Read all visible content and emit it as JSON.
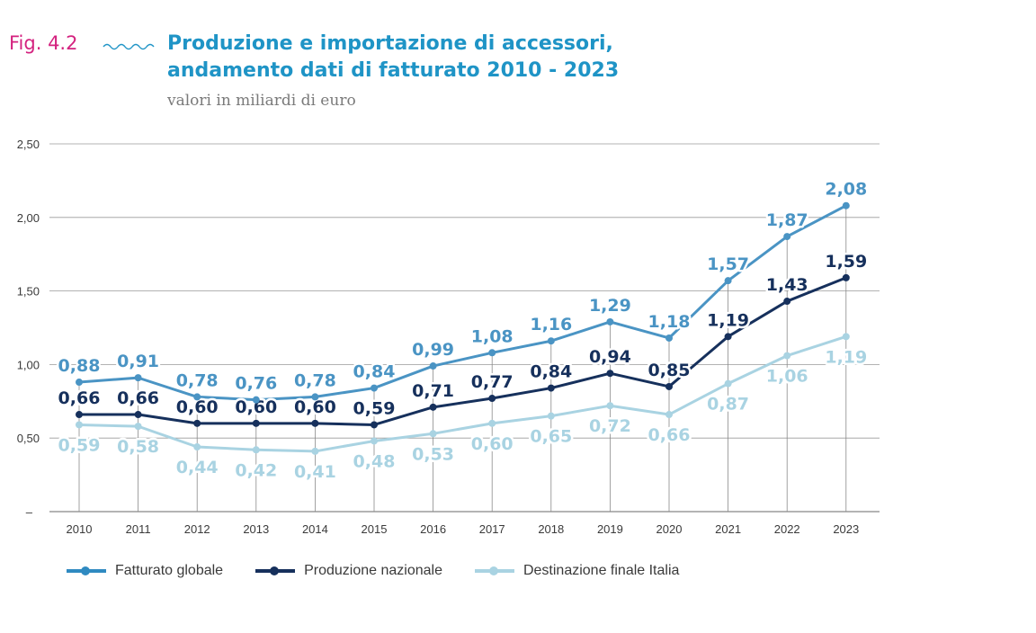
{
  "header": {
    "fig_label": "Fig. 4.2",
    "title_line1": "Produzione e importazione di accessori,",
    "title_line2": "andamento dati di fatturato 2010 - 2023",
    "subtitle": "valori in miliardi di euro"
  },
  "colors": {
    "fig_label": "#d4227f",
    "title": "#1f94c6",
    "grid": "#9a9a9a",
    "series": [
      "#4a94c4",
      "#16305c",
      "#a9d3e2"
    ]
  },
  "chart_data": {
    "type": "line",
    "x": [
      "2010",
      "2011",
      "2012",
      "2013",
      "2014",
      "2015",
      "2016",
      "2017",
      "2018",
      "2019",
      "2020",
      "2021",
      "2022",
      "2023"
    ],
    "ylim": [
      0,
      2.5
    ],
    "yticks": [
      0,
      0.5,
      1.0,
      1.5,
      2.0,
      2.5
    ],
    "ytick_labels": [
      "–",
      "0,50",
      "1,00",
      "1,50",
      "2,00",
      "2,50"
    ],
    "grid": true,
    "legend_position": "bottom",
    "series": [
      {
        "name": "Fatturato globale",
        "values": [
          0.88,
          0.91,
          0.78,
          0.76,
          0.78,
          0.84,
          0.99,
          1.08,
          1.16,
          1.29,
          1.18,
          1.57,
          1.87,
          2.08
        ],
        "labels": [
          "0,88",
          "0,91",
          "0,78",
          "0,76",
          "0,78",
          "0,84",
          "0,99",
          "1,08",
          "1,16",
          "1,29",
          "1,18",
          "1,57",
          "1,87",
          "2,08"
        ],
        "label_position": "above"
      },
      {
        "name": "Produzione nazionale",
        "values": [
          0.66,
          0.66,
          0.6,
          0.6,
          0.6,
          0.59,
          0.71,
          0.77,
          0.84,
          0.94,
          0.85,
          1.19,
          1.43,
          1.59
        ],
        "labels": [
          "0,66",
          "0,66",
          "0,60",
          "0,60",
          "0,60",
          "0,59",
          "0,71",
          "0,77",
          "0,84",
          "0,94",
          "0,85",
          "1,19",
          "1,43",
          "1,59"
        ],
        "label_position": "above"
      },
      {
        "name": "Destinazione finale Italia",
        "values": [
          0.59,
          0.58,
          0.44,
          0.42,
          0.41,
          0.48,
          0.53,
          0.6,
          0.65,
          0.72,
          0.66,
          0.87,
          1.06,
          1.19
        ],
        "labels": [
          "0,59",
          "0,58",
          "0,44",
          "0,42",
          "0,41",
          "0,48",
          "0,53",
          "0,60",
          "0,65",
          "0,72",
          "0,66",
          "0,87",
          "1,06",
          "1,19"
        ],
        "label_position": "below"
      }
    ]
  }
}
